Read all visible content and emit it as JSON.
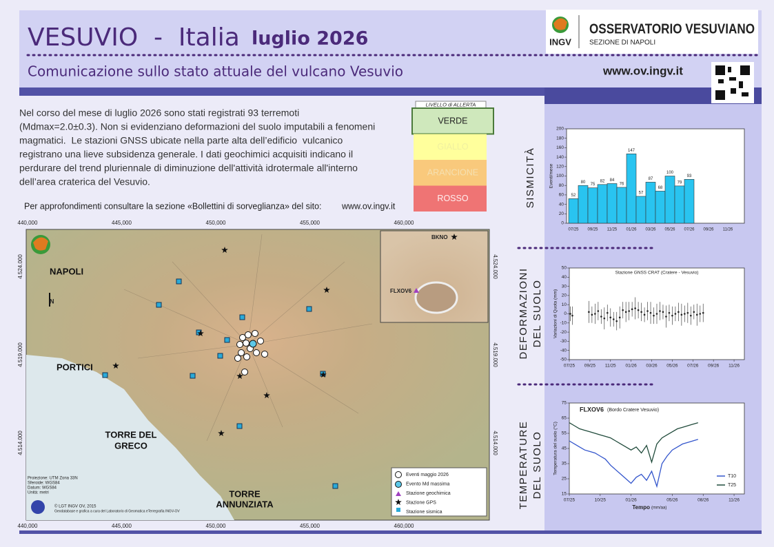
{
  "header": {
    "title": "VESUVIO  -  Italia",
    "period": "luglio 2026",
    "subtitle": "Comunicazione sullo stato attuale del vulcano Vesuvio",
    "org": "OSSERVATORIO VESUVIANO",
    "org_sub": "SEZIONE DI NAPOLI",
    "logo": "INGV",
    "url": "www.ov.ingv.it"
  },
  "text": {
    "lines": [
      "Nel corso del mese di luglio 2026 sono stati registrati 93 terremoti",
      "(Mdmax=2.0±0.3). Non si evidenziano deformazioni del suolo imputabili a fenomeni",
      "magmatici.  Le stazioni GNSS ubicate nella parte alta dell’edificio  vulcanico",
      "registrano una lieve subsidenza generale. I dati geochimici acquisiti indicano il",
      "perdurare del trend pluriennale di diminuzione dell'attività idrotermale all'interno",
      "dell’area craterica del Vesuvio."
    ],
    "more": "Per approfondimenti consultare la sezione «Bollettini di sorveglianza» del sito:",
    "link": "www.ov.ingv.it"
  },
  "alert": {
    "title": "LIVELLO di ALLERTA",
    "levels": [
      "VERDE",
      "GIALLO",
      "ARANCIONE",
      "ROSSO"
    ]
  },
  "map": {
    "x_coords": [
      "440,000",
      "445,000",
      "450,000",
      "455,000",
      "460,000"
    ],
    "y_coords": [
      "4.524.000",
      "4.519.000",
      "4.514.000"
    ],
    "places": [
      "NAPOLI",
      "PORTICI",
      [
        "TORRE DEL",
        "GRECO"
      ],
      [
        "TORRE",
        "ANNUNZIATA"
      ]
    ],
    "north": "N",
    "inset_labels": [
      "BKNO",
      "FLXOV6"
    ],
    "legend": [
      "Eventi maggio 2026",
      "Evento Md massima",
      "Stazione geochimica",
      "Stazione GPS",
      "Stazione sismica"
    ],
    "credits": [
      "Proiezione: UTM Zona 33N",
      "Sferoide: WGS84",
      "Datum: WGS84",
      "Unità: metri",
      "© LGT INGV OV, 2015",
      "Geodatabase e grafica a cura del Laboratorio di Geomatica eTerregrafia INGV-OV"
    ]
  },
  "side_labels": [
    [
      "SISMICITÀ"
    ],
    [
      "DEFORMAZIONI",
      "DEL SUOLO"
    ],
    [
      "TEMPERATURE",
      "DEL SUOLO"
    ]
  ],
  "chart_data": [
    {
      "type": "bar",
      "y_label": "Eventi/mese",
      "categories": [
        "07/25",
        null,
        "09/25",
        null,
        "11/25",
        null,
        "01/26",
        null,
        "03/26",
        null,
        "05/26",
        null,
        "07/26",
        null,
        "09/26",
        null,
        "11/26",
        null
      ],
      "values": [
        52,
        80,
        75,
        82,
        84,
        76,
        147,
        57,
        87,
        68,
        100,
        79,
        93,
        null,
        null,
        null,
        null,
        null
      ],
      "color": "#29c4f0",
      "ylim": [
        0,
        200
      ],
      "yticks": [
        0,
        20,
        40,
        60,
        80,
        100,
        120,
        140,
        160,
        180,
        200
      ]
    },
    {
      "type": "scatter",
      "title": "Stazione GNSS CRAT (Cratere - Vesuvio)",
      "y_label": "Variazioni di Quota (mm)",
      "x": [
        0.1,
        0.3,
        1.9,
        2.2,
        2.5,
        2.8,
        3.1,
        3.4,
        3.7,
        4.0,
        4.3,
        4.6,
        4.9,
        5.2,
        5.5,
        5.8,
        6.1,
        6.4,
        6.7,
        7.0,
        7.3,
        7.6,
        7.9,
        8.2,
        8.5,
        8.8,
        9.1,
        9.4,
        9.7,
        10.0,
        10.3,
        10.6,
        10.9,
        11.2,
        11.5,
        11.8,
        12.1,
        12.4,
        12.7,
        13.0
      ],
      "values": [
        0,
        -2,
        2,
        -1,
        0,
        3,
        -3,
        -5,
        1,
        -4,
        -6,
        -8,
        -4,
        4,
        2,
        3,
        5,
        6,
        4,
        2,
        -1,
        3,
        1,
        -2,
        0,
        3,
        2,
        -3,
        1,
        -2,
        0,
        2,
        -1,
        0,
        1,
        -2,
        2,
        -1,
        0,
        1
      ],
      "errors": [
        8,
        10,
        12,
        9,
        11,
        10,
        8,
        12,
        9,
        10,
        8,
        10,
        12,
        9,
        11,
        10,
        8,
        12,
        9,
        10,
        8,
        10,
        12,
        9,
        11,
        10,
        8,
        12,
        9,
        10,
        8,
        10,
        12,
        9,
        11,
        10,
        8,
        12,
        9,
        10
      ],
      "color": "#222222",
      "xlim": [
        0,
        17
      ],
      "ylim": [
        -50,
        50
      ],
      "yticks": [
        -50,
        -40,
        -30,
        -20,
        -10,
        0,
        10,
        20,
        30,
        40,
        50
      ],
      "xticks": [
        {
          "value": 0,
          "label": "07/25"
        },
        {
          "value": 2,
          "label": "09/25"
        },
        {
          "value": 4,
          "label": "11/25"
        },
        {
          "value": 6,
          "label": "01/26"
        },
        {
          "value": 8,
          "label": "03/26"
        },
        {
          "value": 10,
          "label": "05/26"
        },
        {
          "value": 12,
          "label": "07/26"
        },
        {
          "value": 14,
          "label": "09/26"
        },
        {
          "value": 16,
          "label": "11/26"
        }
      ]
    },
    {
      "type": "line",
      "title": "FLXOV6",
      "subtitle": "(Bordo Cratere Vesuvio)",
      "y_label": "Temperatura del suolo (°C)",
      "x_label": "Tempo",
      "x_unit": "(mm/aa)",
      "legend": "lower right",
      "x": [
        0,
        0.5,
        1,
        1.5,
        2,
        2.5,
        3,
        3.5,
        4,
        4.5,
        5,
        5.5,
        6,
        6.5,
        7,
        7.5,
        8,
        8.5,
        9,
        9.5,
        10,
        10.5,
        11,
        11.5,
        12,
        12.5
      ],
      "series": [
        {
          "name": "T10",
          "color": "#3355cc",
          "values": [
            50,
            48,
            46,
            44,
            43,
            42,
            40,
            38,
            34,
            31,
            28,
            25,
            22,
            26,
            28,
            24,
            30,
            20,
            35,
            40,
            44,
            46,
            48,
            49,
            50,
            51
          ]
        },
        {
          "name": "T25",
          "color": "#1f4a3a",
          "values": [
            62,
            60,
            58,
            57,
            56,
            55,
            54,
            53,
            52,
            50,
            48,
            46,
            44,
            46,
            42,
            47,
            36,
            48,
            52,
            54,
            56,
            58,
            59,
            60,
            61,
            62
          ]
        }
      ],
      "xlim": [
        0,
        17
      ],
      "ylim": [
        15,
        75
      ],
      "yticks": [
        15,
        25,
        35,
        45,
        55,
        65,
        75
      ],
      "xticks": [
        {
          "value": 0,
          "label": "07/25"
        },
        {
          "value": 3,
          "label": "10/25"
        },
        {
          "value": 6,
          "label": "01/26"
        },
        {
          "value": 10,
          "label": "05/26"
        },
        {
          "value": 13,
          "label": "08/26"
        },
        {
          "value": 16,
          "label": "11/26"
        }
      ]
    }
  ]
}
